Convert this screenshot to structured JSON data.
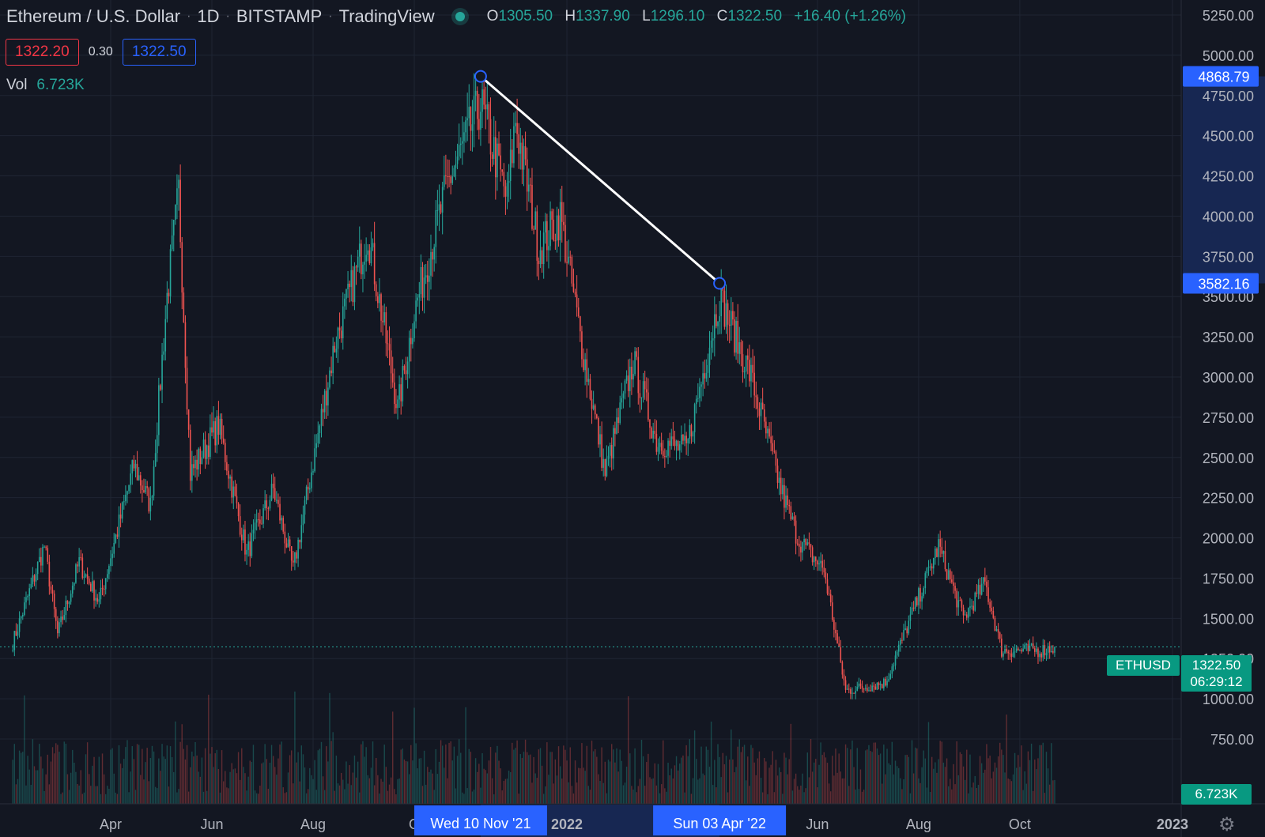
{
  "header": {
    "title": "Ethereum / U.S. Dollar",
    "interval": "1D",
    "exchange": "BITSTAMP",
    "platform": "TradingView",
    "ohlc": {
      "o_label": "O",
      "o": "1305.50",
      "h_label": "H",
      "h": "1337.90",
      "l_label": "L",
      "l": "1296.10",
      "c_label": "C",
      "c": "1322.50",
      "change": "+16.40 (+1.26%)"
    }
  },
  "trade": {
    "sell": "1322.20",
    "spread": "0.30",
    "buy": "1322.50"
  },
  "volume": {
    "label": "Vol",
    "value": "6.723K"
  },
  "badges": {
    "symbol": "ETHUSD",
    "last_price": "1322.50",
    "countdown": "06:29:12",
    "volume": "6.723K"
  },
  "colors": {
    "background": "#131722",
    "up": "#26a69a",
    "down": "#ef5350",
    "accent": "#2962ff",
    "last": "#089981"
  },
  "icons": {
    "settings": "gear-icon"
  },
  "chart_data": {
    "type": "candlestick",
    "title": "Ethereum / U.S. Dollar",
    "ylim": [
      650,
      5350
    ],
    "y_ticks": [
      "5250.00",
      "5000.00",
      "4750.00",
      "4500.00",
      "4250.00",
      "4000.00",
      "3750.00",
      "3500.00",
      "3250.00",
      "3000.00",
      "2750.00",
      "2500.00",
      "2250.00",
      "2000.00",
      "1750.00",
      "1500.00",
      "1250.00",
      "1000.00",
      "750.00"
    ],
    "x_ticks": [
      {
        "label": "Apr",
        "date": "2021-04-01"
      },
      {
        "label": "Jun",
        "date": "2021-06-01"
      },
      {
        "label": "Aug",
        "date": "2021-08-01"
      },
      {
        "label": "O",
        "date": "2021-10-01"
      },
      {
        "label": "2022",
        "date": "2022-01-01"
      },
      {
        "label": "Jun",
        "date": "2022-06-01"
      },
      {
        "label": "Aug",
        "date": "2022-08-01"
      },
      {
        "label": "Oct",
        "date": "2022-10-01"
      },
      {
        "label": "2023",
        "date": "2023-01-01"
      }
    ],
    "trendline": {
      "start": {
        "date": "2021-11-10",
        "price": 4868.79,
        "price_label": "4868.79",
        "date_label": "Wed 10 Nov '21"
      },
      "end": {
        "date": "2022-04-03",
        "price": 3582.16,
        "price_label": "3582.16",
        "date_label": "Sun 03 Apr '22"
      }
    },
    "last_price": 1322.5,
    "series_path": [
      {
        "date": "2021-02-01",
        "price": 1350
      },
      {
        "date": "2021-02-20",
        "price": 1950
      },
      {
        "date": "2021-02-28",
        "price": 1400
      },
      {
        "date": "2021-03-13",
        "price": 1850
      },
      {
        "date": "2021-03-25",
        "price": 1600
      },
      {
        "date": "2021-04-15",
        "price": 2450
      },
      {
        "date": "2021-04-25",
        "price": 2200
      },
      {
        "date": "2021-05-05",
        "price": 3500
      },
      {
        "date": "2021-05-12",
        "price": 4150
      },
      {
        "date": "2021-05-19",
        "price": 2400
      },
      {
        "date": "2021-06-05",
        "price": 2700
      },
      {
        "date": "2021-06-22",
        "price": 1900
      },
      {
        "date": "2021-07-08",
        "price": 2300
      },
      {
        "date": "2021-07-20",
        "price": 1800
      },
      {
        "date": "2021-08-14",
        "price": 3200
      },
      {
        "date": "2021-09-03",
        "price": 3900
      },
      {
        "date": "2021-09-21",
        "price": 2800
      },
      {
        "date": "2021-10-01",
        "price": 3400
      },
      {
        "date": "2021-10-21",
        "price": 4200
      },
      {
        "date": "2021-11-10",
        "price": 4700
      },
      {
        "date": "2021-11-26",
        "price": 4100
      },
      {
        "date": "2021-12-01",
        "price": 4600
      },
      {
        "date": "2021-12-15",
        "price": 3800
      },
      {
        "date": "2021-12-28",
        "price": 4000
      },
      {
        "date": "2022-01-10",
        "price": 3200
      },
      {
        "date": "2022-01-24",
        "price": 2400
      },
      {
        "date": "2022-02-10",
        "price": 3100
      },
      {
        "date": "2022-02-24",
        "price": 2600
      },
      {
        "date": "2022-03-14",
        "price": 2550
      },
      {
        "date": "2022-04-03",
        "price": 3500
      },
      {
        "date": "2022-04-22",
        "price": 3000
      },
      {
        "date": "2022-05-10",
        "price": 2300
      },
      {
        "date": "2022-05-20",
        "price": 2000
      },
      {
        "date": "2022-06-05",
        "price": 1800
      },
      {
        "date": "2022-06-18",
        "price": 1050
      },
      {
        "date": "2022-07-12",
        "price": 1100
      },
      {
        "date": "2022-08-13",
        "price": 1950
      },
      {
        "date": "2022-08-28",
        "price": 1500
      },
      {
        "date": "2022-09-10",
        "price": 1720
      },
      {
        "date": "2022-09-20",
        "price": 1300
      },
      {
        "date": "2022-10-14",
        "price": 1300
      },
      {
        "date": "2022-10-22",
        "price": 1322.5
      }
    ]
  }
}
